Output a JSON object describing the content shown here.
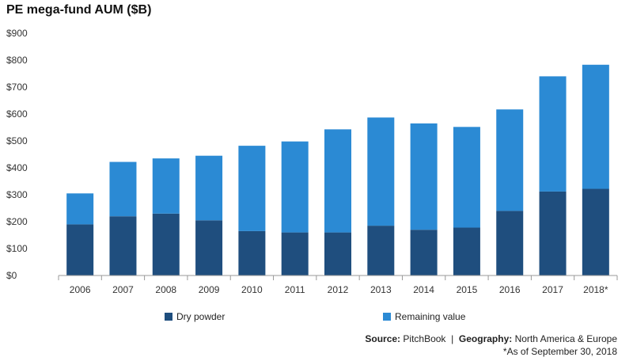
{
  "chart_data": {
    "type": "bar",
    "stacked": true,
    "title": "PE mega-fund AUM ($B)",
    "categories": [
      "2006",
      "2007",
      "2008",
      "2009",
      "2010",
      "2011",
      "2012",
      "2013",
      "2014",
      "2015",
      "2016",
      "2017",
      "2018*"
    ],
    "series": [
      {
        "name": "Dry powder",
        "color": "#1f4e7e",
        "values": [
          190,
          220,
          230,
          205,
          165,
          160,
          160,
          185,
          170,
          178,
          240,
          312,
          322
        ]
      },
      {
        "name": "Remaining value",
        "color": "#2b8ad4",
        "values": [
          115,
          202,
          205,
          240,
          317,
          338,
          383,
          402,
          395,
          374,
          377,
          428,
          461
        ]
      }
    ],
    "ylim": [
      0,
      900
    ],
    "yticks": [
      0,
      100,
      200,
      300,
      400,
      500,
      600,
      700,
      800,
      900
    ],
    "ytick_labels": [
      "$0",
      "$100",
      "$200",
      "$300",
      "$400",
      "$500",
      "$600",
      "$700",
      "$800",
      "$900"
    ],
    "legend_position": "bottom",
    "grid": false
  },
  "footer": {
    "source_label": "Source:",
    "source_value": "PitchBook",
    "separator": "|",
    "geography_label": "Geography:",
    "geography_value": "North America & Europe",
    "note": "*As of September 30, 2018"
  }
}
